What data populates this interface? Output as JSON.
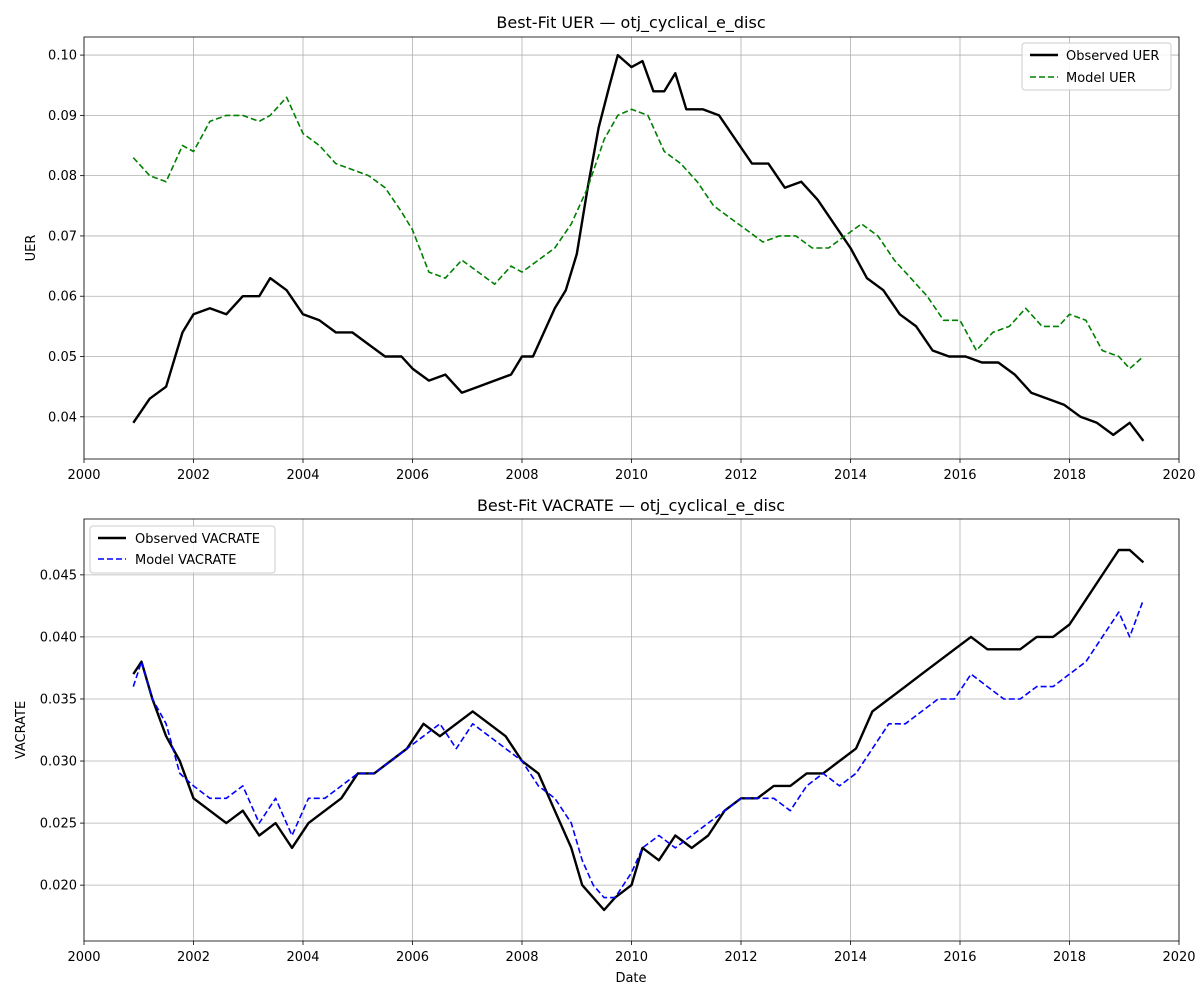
{
  "chart_data": [
    {
      "type": "line",
      "title": "Best-Fit UER — otj_cyclical_e_disc",
      "xlabel": "",
      "ylabel": "UER",
      "xlim": [
        2000,
        2020
      ],
      "ylim": [
        0.033,
        0.103
      ],
      "xticks": [
        2000,
        2002,
        2004,
        2006,
        2008,
        2010,
        2012,
        2014,
        2016,
        2018,
        2020
      ],
      "xtick_labels": [
        "2000",
        "2002",
        "2004",
        "2006",
        "2008",
        "2010",
        "2012",
        "2014",
        "2016",
        "2018",
        "2020"
      ],
      "yticks": [
        0.04,
        0.05,
        0.06,
        0.07,
        0.08,
        0.09,
        0.1
      ],
      "ytick_labels": [
        "0.04",
        "0.05",
        "0.06",
        "0.07",
        "0.08",
        "0.09",
        "0.10"
      ],
      "grid": true,
      "legend_position": "upper right",
      "series": [
        {
          "name": "Observed UER",
          "color": "#000000",
          "style": "solid",
          "x": [
            2000.9,
            2001.2,
            2001.5,
            2001.8,
            2002.0,
            2002.3,
            2002.6,
            2002.9,
            2003.2,
            2003.4,
            2003.7,
            2004.0,
            2004.3,
            2004.6,
            2004.9,
            2005.2,
            2005.5,
            2005.8,
            2006.0,
            2006.3,
            2006.6,
            2006.9,
            2007.2,
            2007.5,
            2007.8,
            2008.0,
            2008.2,
            2008.4,
            2008.6,
            2008.8,
            2009.0,
            2009.2,
            2009.4,
            2009.6,
            2009.75,
            2010.0,
            2010.2,
            2010.4,
            2010.6,
            2010.8,
            2011.0,
            2011.3,
            2011.6,
            2011.9,
            2012.2,
            2012.5,
            2012.8,
            2013.1,
            2013.4,
            2013.7,
            2014.0,
            2014.3,
            2014.6,
            2014.9,
            2015.2,
            2015.5,
            2015.8,
            2016.1,
            2016.4,
            2016.7,
            2017.0,
            2017.3,
            2017.6,
            2017.9,
            2018.2,
            2018.5,
            2018.8,
            2019.1,
            2019.35
          ],
          "y": [
            0.039,
            0.043,
            0.045,
            0.054,
            0.057,
            0.058,
            0.057,
            0.06,
            0.06,
            0.063,
            0.061,
            0.057,
            0.056,
            0.054,
            0.054,
            0.052,
            0.05,
            0.05,
            0.048,
            0.046,
            0.047,
            0.044,
            0.045,
            0.046,
            0.047,
            0.05,
            0.05,
            0.054,
            0.058,
            0.061,
            0.067,
            0.078,
            0.088,
            0.095,
            0.1,
            0.098,
            0.099,
            0.094,
            0.094,
            0.097,
            0.091,
            0.091,
            0.09,
            0.086,
            0.082,
            0.082,
            0.078,
            0.079,
            0.076,
            0.072,
            0.068,
            0.063,
            0.061,
            0.057,
            0.055,
            0.051,
            0.05,
            0.05,
            0.049,
            0.049,
            0.047,
            0.044,
            0.043,
            0.042,
            0.04,
            0.039,
            0.037,
            0.039,
            0.036
          ]
        },
        {
          "name": "Model UER",
          "color": "#008000",
          "style": "dashed",
          "x": [
            2000.9,
            2001.2,
            2001.5,
            2001.8,
            2002.0,
            2002.3,
            2002.6,
            2002.9,
            2003.2,
            2003.4,
            2003.7,
            2004.0,
            2004.3,
            2004.6,
            2004.9,
            2005.2,
            2005.5,
            2005.8,
            2006.0,
            2006.3,
            2006.6,
            2006.9,
            2007.2,
            2007.5,
            2007.8,
            2008.0,
            2008.3,
            2008.6,
            2008.9,
            2009.2,
            2009.5,
            2009.75,
            2010.0,
            2010.3,
            2010.6,
            2010.9,
            2011.2,
            2011.5,
            2011.8,
            2012.1,
            2012.4,
            2012.7,
            2013.0,
            2013.3,
            2013.6,
            2013.9,
            2014.2,
            2014.5,
            2014.8,
            2015.1,
            2015.4,
            2015.7,
            2016.0,
            2016.3,
            2016.6,
            2016.9,
            2017.2,
            2017.5,
            2017.8,
            2018.0,
            2018.3,
            2018.6,
            2018.9,
            2019.1,
            2019.35
          ],
          "y": [
            0.083,
            0.08,
            0.079,
            0.085,
            0.084,
            0.089,
            0.09,
            0.09,
            0.089,
            0.09,
            0.093,
            0.087,
            0.085,
            0.082,
            0.081,
            0.08,
            0.078,
            0.074,
            0.071,
            0.064,
            0.063,
            0.066,
            0.064,
            0.062,
            0.065,
            0.064,
            0.066,
            0.068,
            0.072,
            0.078,
            0.086,
            0.09,
            0.091,
            0.09,
            0.084,
            0.082,
            0.079,
            0.075,
            0.073,
            0.071,
            0.069,
            0.07,
            0.07,
            0.068,
            0.068,
            0.07,
            0.072,
            0.07,
            0.066,
            0.063,
            0.06,
            0.056,
            0.056,
            0.051,
            0.054,
            0.055,
            0.058,
            0.055,
            0.055,
            0.057,
            0.056,
            0.051,
            0.05,
            0.048,
            0.05
          ]
        }
      ]
    },
    {
      "type": "line",
      "title": "Best-Fit VACRATE — otj_cyclical_e_disc",
      "xlabel": "Date",
      "ylabel": "VACRATE",
      "xlim": [
        2000,
        2020
      ],
      "ylim": [
        0.0155,
        0.0495
      ],
      "xticks": [
        2000,
        2002,
        2004,
        2006,
        2008,
        2010,
        2012,
        2014,
        2016,
        2018,
        2020
      ],
      "xtick_labels": [
        "2000",
        "2002",
        "2004",
        "2006",
        "2008",
        "2010",
        "2012",
        "2014",
        "2016",
        "2018",
        "2020"
      ],
      "yticks": [
        0.02,
        0.025,
        0.03,
        0.035,
        0.04,
        0.045
      ],
      "ytick_labels": [
        "0.020",
        "0.025",
        "0.030",
        "0.035",
        "0.040",
        "0.045"
      ],
      "grid": true,
      "legend_position": "upper left",
      "series": [
        {
          "name": "Observed VACRATE",
          "color": "#000000",
          "style": "solid",
          "x": [
            2000.9,
            2001.05,
            2001.25,
            2001.5,
            2001.75,
            2002.0,
            2002.3,
            2002.6,
            2002.9,
            2003.2,
            2003.5,
            2003.8,
            2004.1,
            2004.4,
            2004.7,
            2005.0,
            2005.3,
            2005.6,
            2005.9,
            2006.2,
            2006.5,
            2006.8,
            2007.1,
            2007.4,
            2007.7,
            2008.0,
            2008.3,
            2008.6,
            2008.9,
            2009.1,
            2009.3,
            2009.5,
            2009.7,
            2010.0,
            2010.2,
            2010.5,
            2010.8,
            2011.1,
            2011.4,
            2011.7,
            2012.0,
            2012.3,
            2012.6,
            2012.9,
            2013.2,
            2013.5,
            2013.8,
            2014.1,
            2014.4,
            2014.7,
            2015.0,
            2015.3,
            2015.6,
            2015.9,
            2016.2,
            2016.5,
            2016.8,
            2017.1,
            2017.4,
            2017.7,
            2018.0,
            2018.3,
            2018.6,
            2018.9,
            2019.1,
            2019.35
          ],
          "y": [
            0.037,
            0.038,
            0.035,
            0.032,
            0.03,
            0.027,
            0.026,
            0.025,
            0.026,
            0.024,
            0.025,
            0.023,
            0.025,
            0.026,
            0.027,
            0.029,
            0.029,
            0.03,
            0.031,
            0.033,
            0.032,
            0.033,
            0.034,
            0.033,
            0.032,
            0.03,
            0.029,
            0.026,
            0.023,
            0.02,
            0.019,
            0.018,
            0.019,
            0.02,
            0.023,
            0.022,
            0.024,
            0.023,
            0.024,
            0.026,
            0.027,
            0.027,
            0.028,
            0.028,
            0.029,
            0.029,
            0.03,
            0.031,
            0.034,
            0.035,
            0.036,
            0.037,
            0.038,
            0.039,
            0.04,
            0.039,
            0.039,
            0.039,
            0.04,
            0.04,
            0.041,
            0.043,
            0.045,
            0.047,
            0.047,
            0.046
          ]
        },
        {
          "name": "Model VACRATE",
          "color": "#0000ff",
          "style": "dashed",
          "x": [
            2000.9,
            2001.05,
            2001.25,
            2001.5,
            2001.75,
            2002.0,
            2002.3,
            2002.6,
            2002.9,
            2003.2,
            2003.5,
            2003.8,
            2004.1,
            2004.4,
            2004.7,
            2005.0,
            2005.3,
            2005.6,
            2005.9,
            2006.2,
            2006.5,
            2006.8,
            2007.1,
            2007.4,
            2007.7,
            2008.0,
            2008.3,
            2008.6,
            2008.9,
            2009.1,
            2009.3,
            2009.5,
            2009.7,
            2010.0,
            2010.2,
            2010.5,
            2010.8,
            2011.1,
            2011.4,
            2011.7,
            2012.0,
            2012.3,
            2012.6,
            2012.9,
            2013.2,
            2013.5,
            2013.8,
            2014.1,
            2014.4,
            2014.7,
            2015.0,
            2015.3,
            2015.6,
            2015.9,
            2016.2,
            2016.5,
            2016.8,
            2017.1,
            2017.4,
            2017.7,
            2018.0,
            2018.3,
            2018.6,
            2018.9,
            2019.1,
            2019.35
          ],
          "y": [
            0.036,
            0.038,
            0.035,
            0.033,
            0.029,
            0.028,
            0.027,
            0.027,
            0.028,
            0.025,
            0.027,
            0.024,
            0.027,
            0.027,
            0.028,
            0.029,
            0.029,
            0.03,
            0.031,
            0.032,
            0.033,
            0.031,
            0.033,
            0.032,
            0.031,
            0.03,
            0.028,
            0.027,
            0.025,
            0.022,
            0.02,
            0.019,
            0.019,
            0.021,
            0.023,
            0.024,
            0.023,
            0.024,
            0.025,
            0.026,
            0.027,
            0.027,
            0.027,
            0.026,
            0.028,
            0.029,
            0.028,
            0.029,
            0.031,
            0.033,
            0.033,
            0.034,
            0.035,
            0.035,
            0.037,
            0.036,
            0.035,
            0.035,
            0.036,
            0.036,
            0.037,
            0.038,
            0.04,
            0.042,
            0.04,
            0.043
          ]
        }
      ]
    }
  ]
}
